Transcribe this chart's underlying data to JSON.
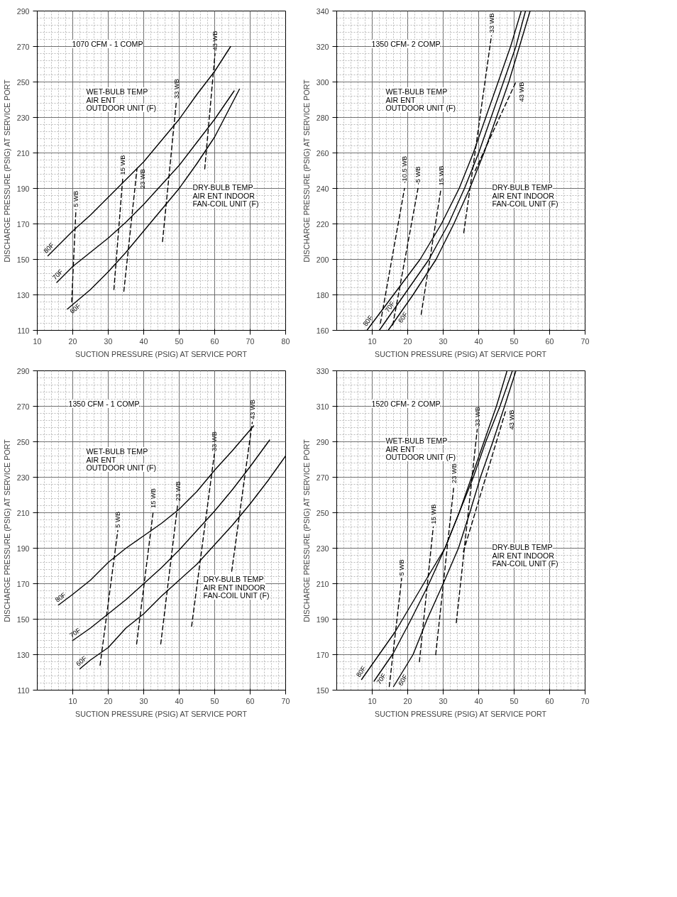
{
  "chart_data": [
    {
      "type": "line",
      "xlabel": "SUCTION PRESSURE (PSIG) AT SERVICE PORT",
      "ylabel": "DISCHARGE PRESSURE (PSIG) AT SERVICE PORT",
      "xlim": [
        10,
        80
      ],
      "ylim": [
        110,
        290
      ],
      "xticks": [
        10,
        20,
        30,
        40,
        50,
        60,
        70,
        80
      ],
      "yticks": [
        110,
        130,
        150,
        170,
        190,
        210,
        230,
        250,
        270,
        290
      ],
      "grid": true,
      "line_style": "solid",
      "annotations": [
        "1070 CFM - 1 COMP",
        "WET-BULB TEMP\nAIR ENT\nOUTDOOR UNIT (F)",
        "DRY-BULB TEMP\nAIR ENT INDOOR\nFAN-COIL UNIT (F)"
      ],
      "series": [
        {
          "name": "80F",
          "color": "#000000",
          "x": [
            13,
            20,
            25,
            30,
            34,
            40,
            45,
            50,
            55,
            60,
            64.5
          ],
          "values": [
            152,
            166,
            175,
            185,
            193,
            205,
            217,
            229,
            243,
            256,
            270
          ]
        },
        {
          "name": "70F",
          "color": "#000000",
          "x": [
            15.5,
            20,
            25,
            30,
            35,
            40,
            45,
            50,
            55,
            60,
            65.5
          ],
          "values": [
            137,
            146,
            154,
            162,
            171,
            181,
            192,
            203,
            216,
            229,
            245
          ]
        },
        {
          "name": "60F",
          "color": "#000000",
          "x": [
            18.5,
            25,
            30,
            35,
            40,
            45,
            50,
            55,
            60,
            67
          ],
          "values": [
            122,
            133,
            143,
            154,
            166,
            178,
            190,
            204,
            219,
            246
          ]
        },
        {
          "name": "5 WB",
          "color": "#000000",
          "line_style": "dashed",
          "x": [
            19.7,
            20.9
          ],
          "values": [
            126,
            178
          ]
        },
        {
          "name": "15 WB",
          "color": "#000000",
          "line_style": "dashed",
          "x": [
            31.6,
            34.1
          ],
          "values": [
            133,
            196
          ]
        },
        {
          "name": "23 WB",
          "color": "#000000",
          "line_style": "dashed",
          "x": [
            34.4,
            38.1
          ],
          "values": [
            132,
            201
          ]
        },
        {
          "name": "33 WB",
          "color": "#000000",
          "line_style": "dashed",
          "x": [
            45.3,
            49.2
          ],
          "values": [
            160,
            239
          ]
        },
        {
          "name": "43 WB",
          "color": "#000000",
          "line_style": "dashed",
          "x": [
            57.2,
            60.1
          ],
          "values": [
            201,
            266
          ]
        }
      ]
    },
    {
      "type": "line",
      "xlabel": "SUCTION PRESSURE (PSIG) AT SERVICE PORT",
      "ylabel": "DISCHARGE PRESSURE (PSIG) AT SERVICE PORT",
      "xlim": [
        0,
        70
      ],
      "ylim": [
        160,
        340
      ],
      "xticks": [
        10,
        20,
        30,
        40,
        50,
        60,
        70
      ],
      "yticks": [
        160,
        180,
        200,
        220,
        240,
        260,
        280,
        300,
        320,
        340
      ],
      "grid": true,
      "line_style": "solid",
      "annotations": [
        "1350 CFM- 2 COMP.",
        "WET-BULB TEMP\nAIR ENT\nOUTDOOR UNIT (F)",
        "DRY-BULB TEMP\nAIR ENT INDOOR\nFAN-COIL UNIT (F)"
      ],
      "series": [
        {
          "name": "80F",
          "color": "#000000",
          "x": [
            8.5,
            16,
            23.5,
            29.5,
            34.5,
            38.5,
            42,
            45.5,
            49,
            52
          ],
          "values": [
            160,
            180,
            200,
            220,
            240,
            260,
            280,
            300,
            320,
            340
          ]
        },
        {
          "name": "70F",
          "color": "#000000",
          "x": [
            12,
            19,
            26,
            31.5,
            36,
            40,
            43.5,
            47,
            50.5,
            53.2
          ],
          "values": [
            160,
            180,
            200,
            220,
            240,
            260,
            280,
            300,
            320,
            340
          ]
        },
        {
          "name": "60F",
          "color": "#000000",
          "x": [
            14.5,
            21.5,
            28,
            33,
            37.5,
            41.5,
            45,
            48.5,
            51.5,
            54.5
          ],
          "values": [
            160,
            180,
            200,
            220,
            240,
            260,
            280,
            300,
            320,
            340
          ]
        },
        {
          "name": "-10.5 WB",
          "color": "#000000",
          "line_style": "dashed",
          "x": [
            12.3,
            19.1
          ],
          "values": [
            164,
            240
          ]
        },
        {
          "name": "-5 WB",
          "color": "#000000",
          "line_style": "dashed",
          "x": [
            15.8,
            22.9
          ],
          "values": [
            163,
            240
          ]
        },
        {
          "name": "15 WB",
          "color": "#000000",
          "line_style": "dashed",
          "x": [
            23.8,
            29.4
          ],
          "values": [
            169,
            240
          ]
        },
        {
          "name": "33 WB",
          "color": "#000000",
          "line_style": "dashed",
          "x": [
            35.8,
            43.6
          ],
          "values": [
            215,
            326
          ]
        },
        {
          "name": "43 WB",
          "color": "#000000",
          "line_style": "dashed",
          "x": [
            39,
            50.5
          ],
          "values": [
            250,
            300
          ]
        }
      ]
    },
    {
      "type": "line",
      "xlabel": "SUCTION PRESSURE (PSIG) AT SERVICE PORT",
      "ylabel": "DISCHARGE PRESSURE (PSIG) AT SERVICE PORT",
      "xlim": [
        0,
        70
      ],
      "ylim": [
        110,
        290
      ],
      "xticks": [
        10,
        20,
        30,
        40,
        50,
        60,
        70
      ],
      "yticks": [
        110,
        130,
        150,
        170,
        190,
        210,
        230,
        250,
        270,
        290
      ],
      "grid": true,
      "line_style": "solid",
      "annotations": [
        "1350 CFM - 1 COMP.",
        "WET-BULB TEMP\nAIR ENT\nOUTDOOR UNIT (F)",
        "DRY-BULB TEMP\nAIR ENT INDOOR\nFAN-COIL UNIT (F)"
      ],
      "series": [
        {
          "name": "80F",
          "color": "#000000",
          "x": [
            6,
            10,
            15,
            20,
            25,
            30,
            35,
            40,
            45,
            50,
            55,
            61
          ],
          "values": [
            158,
            164,
            172,
            182,
            190,
            197,
            204,
            212,
            222,
            234,
            245,
            259
          ]
        },
        {
          "name": "70F",
          "color": "#000000",
          "x": [
            10,
            15,
            20,
            25,
            30,
            35,
            40,
            45,
            50,
            55,
            60,
            65.5
          ],
          "values": [
            138,
            145,
            153,
            161,
            170,
            179,
            189,
            200,
            211,
            223,
            236,
            251
          ]
        },
        {
          "name": "60F",
          "color": "#000000",
          "x": [
            12,
            15,
            20,
            25,
            30,
            35,
            40,
            45,
            50,
            55,
            60,
            65,
            70
          ],
          "values": [
            122,
            127,
            134,
            145,
            153,
            163,
            172,
            181,
            192,
            203,
            215,
            228,
            242
          ]
        },
        {
          "name": "5 WB",
          "color": "#000000",
          "line_style": "dashed",
          "x": [
            17.7,
            22.7
          ],
          "values": [
            124,
            200
          ]
        },
        {
          "name": "15 WB",
          "color": "#000000",
          "line_style": "dashed",
          "x": [
            28,
            32.7
          ],
          "values": [
            136,
            211
          ]
        },
        {
          "name": "23 WB",
          "color": "#000000",
          "line_style": "dashed",
          "x": [
            34.8,
            39.6
          ],
          "values": [
            136,
            215
          ]
        },
        {
          "name": "33 WB",
          "color": "#000000",
          "line_style": "dashed",
          "x": [
            43.5,
            49.9
          ],
          "values": [
            146,
            243
          ]
        },
        {
          "name": "43 WB",
          "color": "#000000",
          "line_style": "dashed",
          "x": [
            54.8,
            60.6
          ],
          "values": [
            177,
            261
          ]
        }
      ]
    },
    {
      "type": "line",
      "xlabel": "SUCTION PRESSURE (PSIG) AT SERVICE PORT",
      "ylabel": "DISCHARGE PRESSURE (PSIG) AT SERVICE PORT",
      "xlim": [
        0,
        70
      ],
      "ylim": [
        150,
        330
      ],
      "xticks": [
        10,
        20,
        30,
        40,
        50,
        60,
        70
      ],
      "yticks": [
        150,
        170,
        190,
        210,
        230,
        250,
        270,
        290,
        310,
        330
      ],
      "grid": true,
      "line_style": "solid",
      "annotations": [
        "1520 CFM- 2 COMP.",
        "WET-BULB TEMP\nAIR ENT\nOUTDOOR UNIT (F)",
        "DRY-BULB TEMP\nAIR ENT INDOOR\nFAN-COIL UNIT (F)"
      ],
      "series": [
        {
          "name": "80F",
          "color": "#000000",
          "x": [
            7,
            16.5,
            24.5,
            30.5,
            34.5,
            38,
            41.5,
            45,
            48
          ],
          "values": [
            156,
            183,
            210,
            230,
            250,
            270,
            290,
            310,
            330
          ]
        },
        {
          "name": "70F",
          "color": "#000000",
          "x": [
            10.5,
            16,
            21,
            26,
            30.5,
            34.5,
            38.5,
            42,
            46,
            49.5
          ],
          "values": [
            155,
            171,
            190,
            210,
            230,
            250,
            270,
            290,
            310,
            330
          ]
        },
        {
          "name": "60F",
          "color": "#000000",
          "x": [
            16,
            21.5,
            25.5,
            30,
            34.3,
            37.5,
            40.5,
            44,
            47.3,
            50.5
          ],
          "values": [
            152,
            170,
            190,
            210,
            230,
            250,
            270,
            290,
            310,
            330
          ]
        },
        {
          "name": "5 WB",
          "color": "#000000",
          "line_style": "dashed",
          "x": [
            14.8,
            18.3
          ],
          "values": [
            152,
            213
          ]
        },
        {
          "name": "15 WB",
          "color": "#000000",
          "line_style": "dashed",
          "x": [
            23.3,
            27.2
          ],
          "values": [
            166,
            242
          ]
        },
        {
          "name": "23 WB",
          "color": "#000000",
          "line_style": "dashed",
          "x": [
            27.9,
            33
          ],
          "values": [
            170,
            265
          ]
        },
        {
          "name": "33 WB",
          "color": "#000000",
          "line_style": "dashed",
          "x": [
            33.7,
            39.6
          ],
          "values": [
            188,
            297
          ]
        },
        {
          "name": "43 WB",
          "color": "#000000",
          "line_style": "dashed",
          "x": [
            35.7,
            47.7
          ],
          "values": [
            228,
            308
          ]
        }
      ]
    }
  ]
}
